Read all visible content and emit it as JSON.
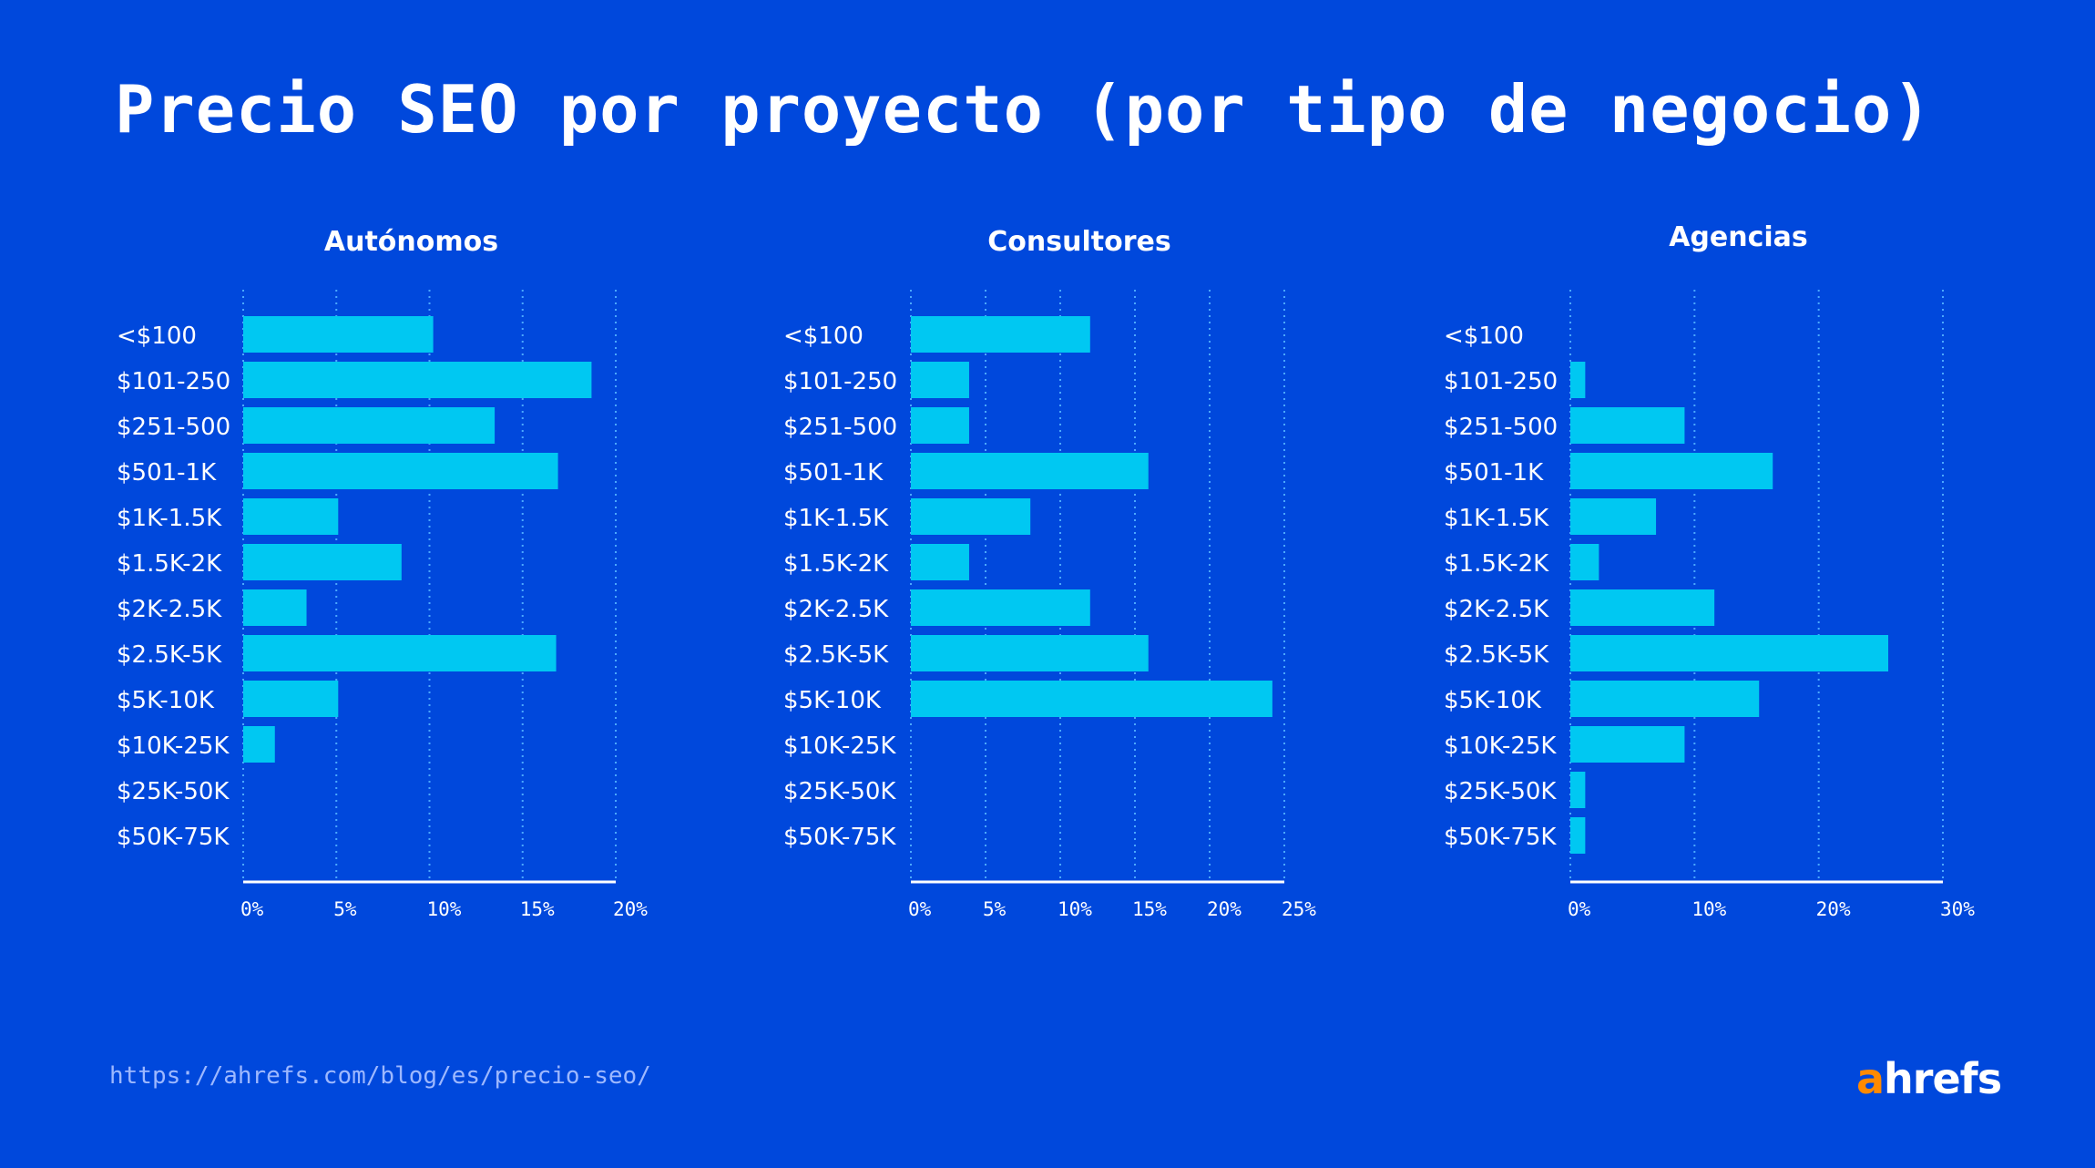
{
  "title": "Precio SEO por proyecto (por tipo de negocio)",
  "footer": {
    "url": "https://ahrefs.com/blog/es/precio-seo/",
    "logo": "ahrefs"
  },
  "colors": {
    "background": "#0048dc",
    "bar": "#00c8f2",
    "grid": "#4aa8ff",
    "logo_accent": "#ff8a00"
  },
  "chart_data": [
    {
      "type": "bar",
      "orientation": "horizontal",
      "title": "Autónomos",
      "categories": [
        "<$100",
        "$101-250",
        "$251-500",
        "$501-1K",
        "$1K-1.5K",
        "$1.5K-2K",
        "$2K-2.5K",
        "$2.5K-5K",
        "$5K-10K",
        "$10K-25K",
        "$25K-50K",
        "$50K-75K"
      ],
      "values": [
        10.2,
        18.7,
        13.5,
        16.9,
        5.1,
        8.5,
        3.4,
        16.8,
        5.1,
        1.7,
        0,
        0
      ],
      "xlim": [
        0,
        20
      ],
      "xticks": [
        "0%",
        "5%",
        "10%",
        "15%",
        "20%"
      ],
      "grid": true
    },
    {
      "type": "bar",
      "orientation": "horizontal",
      "title": "Consultores",
      "categories": [
        "<$100",
        "$101-250",
        "$251-500",
        "$501-1K",
        "$1K-1.5K",
        "$1.5K-2K",
        "$2K-2.5K",
        "$2.5K-5K",
        "$5K-10K",
        "$10K-25K",
        "$25K-50K",
        "$50K-75K"
      ],
      "values": [
        12.0,
        3.9,
        3.9,
        15.9,
        8.0,
        3.9,
        12.0,
        15.9,
        24.2,
        0,
        0,
        0
      ],
      "xlim": [
        0,
        25
      ],
      "xticks": [
        "0%",
        "5%",
        "10%",
        "15%",
        "20%",
        "25%"
      ],
      "grid": true
    },
    {
      "type": "bar",
      "orientation": "horizontal",
      "title": "Agencias",
      "categories": [
        "<$100",
        "$101-250",
        "$251-500",
        "$501-1K",
        "$1K-1.5K",
        "$1.5K-2K",
        "$2K-2.5K",
        "$2.5K-5K",
        "$5K-10K",
        "$10K-25K",
        "$25K-50K",
        "$50K-75K"
      ],
      "values": [
        0,
        1.2,
        9.2,
        16.3,
        6.9,
        2.3,
        11.6,
        25.6,
        15.2,
        9.2,
        1.2,
        1.2
      ],
      "xlim": [
        0,
        30
      ],
      "xticks": [
        "0%",
        "10%",
        "20%",
        "30%"
      ],
      "grid": true
    }
  ]
}
